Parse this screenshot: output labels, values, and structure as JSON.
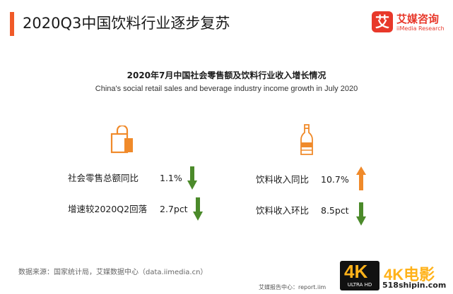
{
  "header": {
    "title": "2020Q3中国饮料行业逐步复苏"
  },
  "logo": {
    "mark": "艾",
    "name_cn": "艾媒咨询",
    "name_en": "iiMedia Research"
  },
  "subtitle": {
    "cn": "2020年7月中国社会零售额及饮料行业收入增长情况",
    "en": "China's social retail sales and beverage industry income growth in July 2020"
  },
  "left_metrics": [
    {
      "label": "社会零售总额同比",
      "value": "1.1%",
      "direction": "down",
      "color": "#4b8a2a"
    },
    {
      "label": "增速较2020Q2回落",
      "value": "2.7pct",
      "direction": "down",
      "color": "#4b8a2a"
    }
  ],
  "right_metrics": [
    {
      "label": "饮料收入同比",
      "value": "10.7%",
      "direction": "up",
      "color": "#f08a2a"
    },
    {
      "label": "饮料收入环比",
      "value": "8.5pct",
      "direction": "down",
      "color": "#4b8a2a"
    }
  ],
  "icons": {
    "left": "shopping-bag-icon",
    "right": "bottle-icon",
    "accent": "#f08a2a"
  },
  "source": "数据来源：国家统计局，艾媒数据中心（data.iimedia.cn）",
  "footer": "艾媒报告中心：report.iim",
  "watermark": {
    "badge": "4K",
    "badge_sub": "ULTRA HD",
    "brand": "4K电影",
    "url": "518shipin.com"
  }
}
